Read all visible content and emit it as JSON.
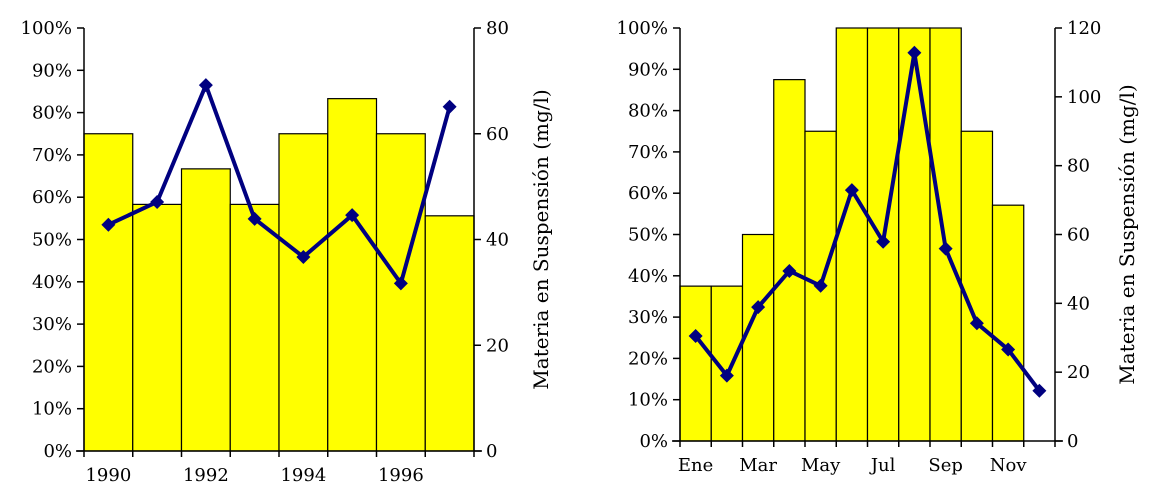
{
  "colors": {
    "bar": "#ffff00",
    "line": "#000080"
  },
  "chart_data": [
    {
      "type": "bar",
      "categories": [
        "1990",
        "1991",
        "1992",
        "1993",
        "1994",
        "1995",
        "1996",
        "1997"
      ],
      "x_tick_labels": [
        "1990",
        "1992",
        "1994",
        "1996"
      ],
      "bar_values": [
        75,
        58.3,
        66.7,
        58.3,
        75,
        83.3,
        75,
        55.6
      ],
      "bar_axis": {
        "range": [
          0,
          100
        ],
        "unit": "%",
        "ticks": [
          "0%",
          "10%",
          "20%",
          "30%",
          "40%",
          "50%",
          "60%",
          "70%",
          "80%",
          "90%",
          "100%"
        ]
      },
      "line_values": [
        42.8,
        47.1,
        69.2,
        43.9,
        36.7,
        44.6,
        31.7,
        65.1
      ],
      "line_axis": {
        "range": [
          0,
          80
        ],
        "ticks": [
          "0",
          "20",
          "40",
          "60",
          "80"
        ],
        "label": "Materia en Suspensión (mg/l)"
      },
      "grid": false
    },
    {
      "type": "bar",
      "categories": [
        "Ene",
        "Feb",
        "Mar",
        "Abr",
        "May",
        "Jun",
        "Jul",
        "Ago",
        "Sep",
        "Oct",
        "Nov",
        "Dic"
      ],
      "x_tick_labels": [
        "Ene",
        "Mar",
        "May",
        "Jul",
        "Sep",
        "Nov"
      ],
      "bar_values": [
        37.5,
        37.5,
        50,
        87.5,
        75,
        100,
        100,
        100,
        100,
        75,
        57.1,
        0
      ],
      "bar_axis": {
        "range": [
          0,
          100
        ],
        "unit": "%",
        "ticks": [
          "0%",
          "10%",
          "20%",
          "30%",
          "40%",
          "50%",
          "60%",
          "70%",
          "80%",
          "90%",
          "100%"
        ]
      },
      "line_values": [
        30.5,
        19,
        38.9,
        49.4,
        45.1,
        72.9,
        57.9,
        112.8,
        55.9,
        34.2,
        26.6,
        14.6
      ],
      "line_axis": {
        "range": [
          0,
          120
        ],
        "ticks": [
          "0",
          "20",
          "40",
          "60",
          "80",
          "100",
          "120"
        ],
        "label": "Materia en Suspensión (mg/l)"
      },
      "grid": false
    }
  ]
}
